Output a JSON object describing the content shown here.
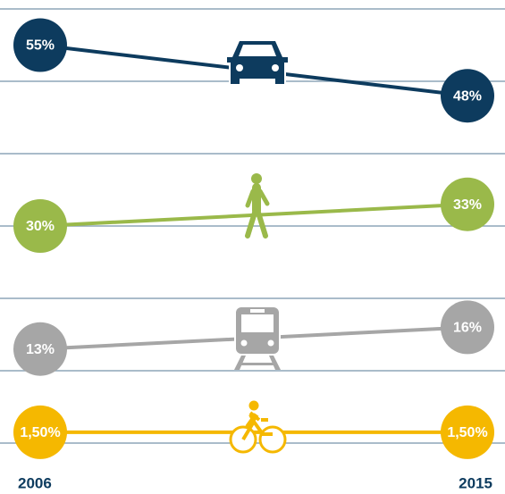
{
  "chart_data": {
    "type": "slope",
    "categories": [
      "2006",
      "2015"
    ],
    "ylim": [
      0,
      60
    ],
    "yticks": [
      0,
      10,
      20,
      30,
      40,
      50,
      60
    ],
    "grid": true,
    "series": [
      {
        "color": "#0d3b5e",
        "values": [
          55,
          48
        ],
        "value_labels": [
          "55%",
          "48%"
        ]
      },
      {
        "color": "#9ab94a",
        "values": [
          30,
          33
        ],
        "value_labels": [
          "30%",
          "33%"
        ]
      },
      {
        "color": "#a6a6a6",
        "values": [
          13,
          16
        ],
        "value_labels": [
          "13%",
          "16%"
        ]
      },
      {
        "color": "#f5b800",
        "values": [
          1.5,
          1.5
        ],
        "value_labels": [
          "1,50%",
          "1,50%"
        ]
      }
    ]
  }
}
